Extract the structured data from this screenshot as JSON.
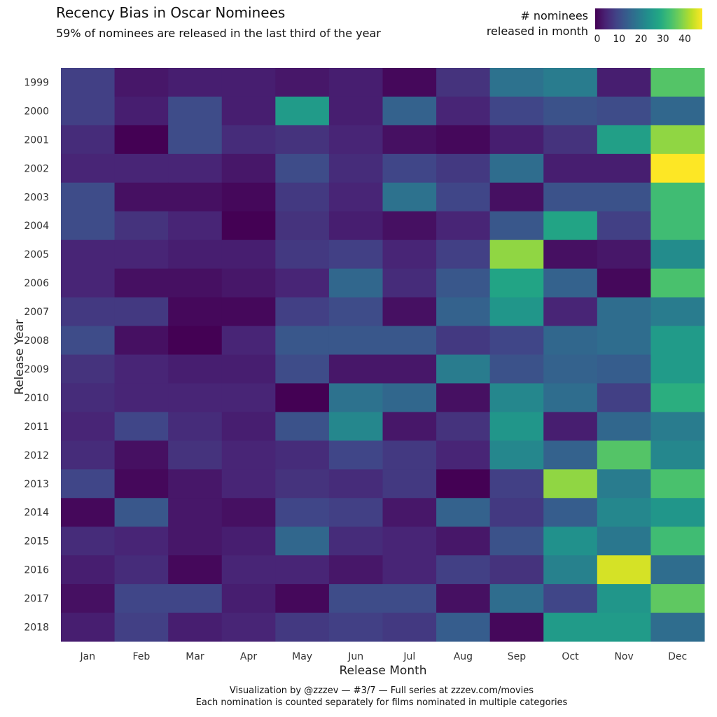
{
  "chart_data": {
    "type": "heatmap",
    "title": "Recency Bias in Oscar Nominees",
    "subtitle": "59% of nominees are released in the last third of the year",
    "xlabel": "Release Month",
    "ylabel": "Release Year",
    "legend": {
      "title_line1": "# nominees",
      "title_line2": "released in month",
      "ticks": [
        "0",
        "10",
        "20",
        "30",
        "40"
      ],
      "range": [
        0,
        48
      ],
      "colormap": "viridis",
      "placement": "top-right"
    },
    "x_categories": [
      "Jan",
      "Feb",
      "Mar",
      "Apr",
      "May",
      "Jun",
      "Jul",
      "Aug",
      "Sep",
      "Oct",
      "Nov",
      "Dec"
    ],
    "y_categories": [
      "1999",
      "2000",
      "2001",
      "2002",
      "2003",
      "2004",
      "2005",
      "2006",
      "2007",
      "2008",
      "2009",
      "2010",
      "2011",
      "2012",
      "2013",
      "2014",
      "2015",
      "2016",
      "2017",
      "2018"
    ],
    "values": [
      [
        9,
        3,
        4,
        4,
        3,
        4,
        1,
        7,
        18,
        20,
        4,
        35
      ],
      [
        9,
        4,
        11,
        4,
        26,
        4,
        15,
        5,
        10,
        12,
        11,
        16
      ],
      [
        6,
        0,
        11,
        6,
        7,
        5,
        2,
        1,
        4,
        7,
        27,
        40
      ],
      [
        5,
        5,
        5,
        3,
        11,
        6,
        10,
        8,
        17,
        4,
        4,
        48
      ],
      [
        11,
        2,
        2,
        1,
        8,
        5,
        18,
        10,
        2,
        12,
        12,
        33
      ],
      [
        11,
        7,
        5,
        0,
        7,
        4,
        2,
        5,
        13,
        28,
        9,
        33
      ],
      [
        5,
        5,
        4,
        4,
        8,
        9,
        5,
        9,
        40,
        2,
        3,
        23
      ],
      [
        5,
        2,
        2,
        3,
        5,
        16,
        6,
        13,
        28,
        15,
        1,
        34
      ],
      [
        8,
        8,
        1,
        1,
        9,
        11,
        2,
        15,
        25,
        5,
        17,
        20
      ],
      [
        11,
        2,
        0,
        5,
        13,
        13,
        13,
        8,
        10,
        16,
        17,
        26
      ],
      [
        7,
        5,
        4,
        4,
        11,
        3,
        3,
        20,
        12,
        15,
        14,
        26
      ],
      [
        6,
        5,
        5,
        5,
        0,
        18,
        16,
        2,
        22,
        17,
        9,
        30
      ],
      [
        5,
        10,
        6,
        4,
        12,
        22,
        3,
        7,
        25,
        4,
        16,
        20
      ],
      [
        6,
        2,
        7,
        5,
        6,
        10,
        8,
        5,
        22,
        15,
        35,
        22
      ],
      [
        10,
        1,
        3,
        5,
        7,
        6,
        8,
        0,
        9,
        40,
        20,
        34
      ],
      [
        1,
        13,
        3,
        2,
        10,
        9,
        3,
        15,
        8,
        14,
        22,
        25
      ],
      [
        6,
        5,
        3,
        4,
        16,
        6,
        5,
        3,
        12,
        24,
        19,
        33
      ],
      [
        4,
        6,
        1,
        5,
        5,
        3,
        5,
        9,
        7,
        21,
        45,
        17
      ],
      [
        2,
        10,
        10,
        4,
        1,
        11,
        11,
        2,
        17,
        10,
        25,
        36
      ],
      [
        4,
        9,
        4,
        5,
        8,
        9,
        8,
        14,
        1,
        26,
        26,
        17
      ]
    ],
    "grid": false
  },
  "caption": {
    "line1": "Visualization by @zzzev   —   #3/7   —   Full series at zzzev.com/movies",
    "line2": "Each nomination is counted separately for films nominated in multiple categories"
  }
}
